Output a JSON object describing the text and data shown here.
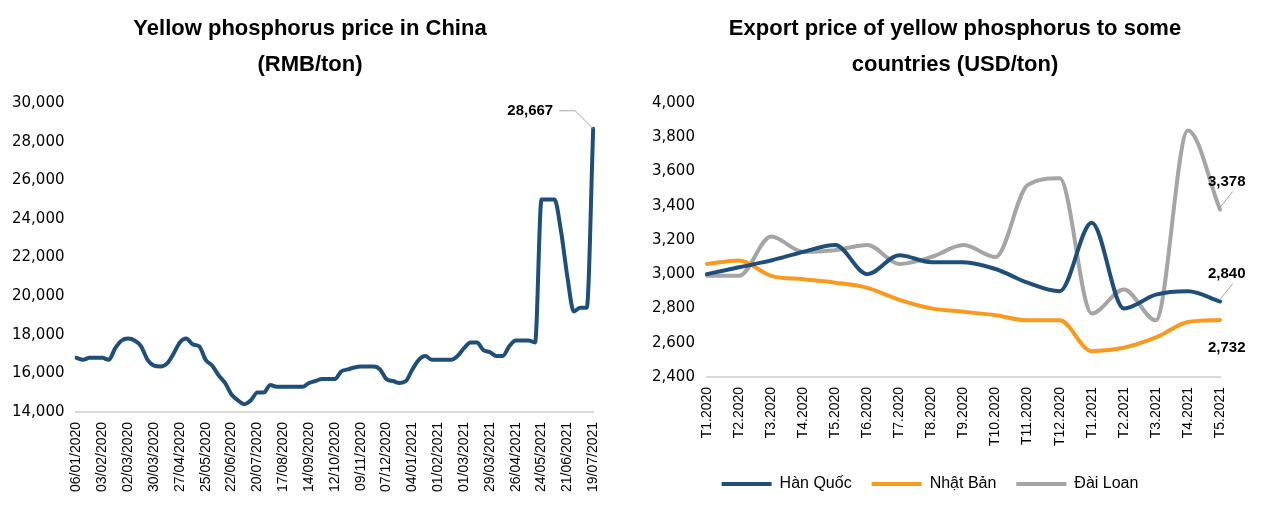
{
  "chart_data": [
    {
      "type": "line",
      "title": "Yellow phosphorus price in China (RMB/ton)",
      "categories": [
        "06/01/2020",
        null,
        null,
        null,
        "03/02/2020",
        null,
        null,
        null,
        "02/03/2020",
        null,
        null,
        null,
        "30/03/2020",
        null,
        null,
        null,
        "27/04/2020",
        null,
        null,
        null,
        "25/05/2020",
        null,
        null,
        null,
        "22/06/2020",
        null,
        null,
        null,
        "20/07/2020",
        null,
        null,
        null,
        "17/08/2020",
        null,
        null,
        null,
        "14/09/2020",
        null,
        null,
        null,
        "12/10/2020",
        null,
        null,
        null,
        "09/11/2020",
        null,
        null,
        null,
        "07/12/2020",
        null,
        null,
        null,
        "04/01/2021",
        null,
        null,
        null,
        "01/02/2021",
        null,
        null,
        null,
        "01/03/2021",
        null,
        null,
        null,
        "29/03/2021",
        null,
        null,
        null,
        "26/04/2021",
        null,
        null,
        null,
        "24/05/2021",
        null,
        null,
        null,
        "21/06/2021",
        null,
        null,
        null,
        "19/07/2021"
      ],
      "series": [
        {
          "color": "#1f4e79",
          "values": [
            16800,
            16700,
            16800,
            16800,
            16800,
            16700,
            17300,
            17700,
            17800,
            17700,
            17400,
            16700,
            16400,
            16350,
            16500,
            17000,
            17600,
            17800,
            17500,
            17400,
            16700,
            16400,
            15900,
            15500,
            14900,
            14600,
            14400,
            14600,
            15000,
            15000,
            15400,
            15300,
            15300,
            15300,
            15300,
            15300,
            15500,
            15600,
            15700,
            15700,
            15700,
            16100,
            16200,
            16300,
            16350,
            16350,
            16350,
            16200,
            15700,
            15600,
            15500,
            15600,
            16200,
            16700,
            16900,
            16700,
            16700,
            16700,
            16700,
            16900,
            17300,
            17600,
            17600,
            17200,
            17100,
            16900,
            16900,
            17400,
            17700,
            17700,
            17700,
            17600,
            25000,
            25000,
            25000,
            23400,
            21000,
            19200,
            19400,
            19400,
            28667
          ]
        }
      ],
      "ylim": [
        14000,
        30000
      ],
      "yticks": [
        {
          "value": 14000,
          "label": "14,000"
        },
        {
          "value": 16000,
          "label": "16,000"
        },
        {
          "value": 18000,
          "label": "18,000"
        },
        {
          "value": 20000,
          "label": "20,000"
        },
        {
          "value": 22000,
          "label": "22,000"
        },
        {
          "value": 24000,
          "label": "24,000"
        },
        {
          "value": 26000,
          "label": "26,000"
        },
        {
          "value": 28000,
          "label": "28,000"
        },
        {
          "value": 30000,
          "label": "30,000"
        }
      ],
      "annotations": [
        {
          "text": "28,667",
          "x": "19/07/2021",
          "y": 28667
        }
      ],
      "grid": false,
      "legend": false,
      "marker": "none"
    },
    {
      "type": "line",
      "title": "Export price of yellow phosphorus to some countries (USD/ton)",
      "categories": [
        "T1.2020",
        "T2.2020",
        "T3.2020",
        "T4.2020",
        "T5.2020",
        "T6.2020",
        "T7.2020",
        "T8.2020",
        "T9.2020",
        "T10.2020",
        "T11.2020",
        "T12.2020",
        "T1.2021",
        "T2.2021",
        "T3.2021",
        "T4.2021",
        "T5.2021"
      ],
      "series": [
        {
          "name": "Hàn Quốc",
          "color": "#1f4e79",
          "values": [
            3000,
            3040,
            3080,
            3130,
            3170,
            3000,
            3110,
            3070,
            3070,
            3030,
            2950,
            2900,
            3300,
            2800,
            2880,
            2900,
            2840
          ]
        },
        {
          "name": "Nhật Bản",
          "color": "#f79a1e",
          "values": [
            3060,
            3080,
            2990,
            2970,
            2950,
            2920,
            2850,
            2800,
            2780,
            2760,
            2730,
            2730,
            2550,
            2570,
            2630,
            2720,
            2732
          ]
        },
        {
          "name": "Đài Loan",
          "color": "#a5a5a5",
          "values": [
            2990,
            2990,
            3220,
            3130,
            3140,
            3170,
            3060,
            3100,
            3170,
            3100,
            3520,
            3560,
            2770,
            2910,
            2730,
            3840,
            3378
          ]
        }
      ],
      "ylim": [
        2400,
        4000
      ],
      "yticks": [
        {
          "value": 2400,
          "label": "2,400"
        },
        {
          "value": 2600,
          "label": "2,600"
        },
        {
          "value": 2800,
          "label": "2,800"
        },
        {
          "value": 3000,
          "label": "3,000"
        },
        {
          "value": 3200,
          "label": "3,200"
        },
        {
          "value": 3400,
          "label": "3,400"
        },
        {
          "value": 3600,
          "label": "3,600"
        },
        {
          "value": 3800,
          "label": "3,800"
        },
        {
          "value": 4000,
          "label": "4,000"
        }
      ],
      "annotations": [
        {
          "text": "3,378",
          "x": "T5.2021",
          "y": 3378
        },
        {
          "text": "2,840",
          "x": "T5.2021",
          "y": 2840
        },
        {
          "text": "2,732",
          "x": "T5.2021",
          "y": 2732
        }
      ],
      "grid": false,
      "legend": "bottom",
      "marker": "none"
    }
  ]
}
